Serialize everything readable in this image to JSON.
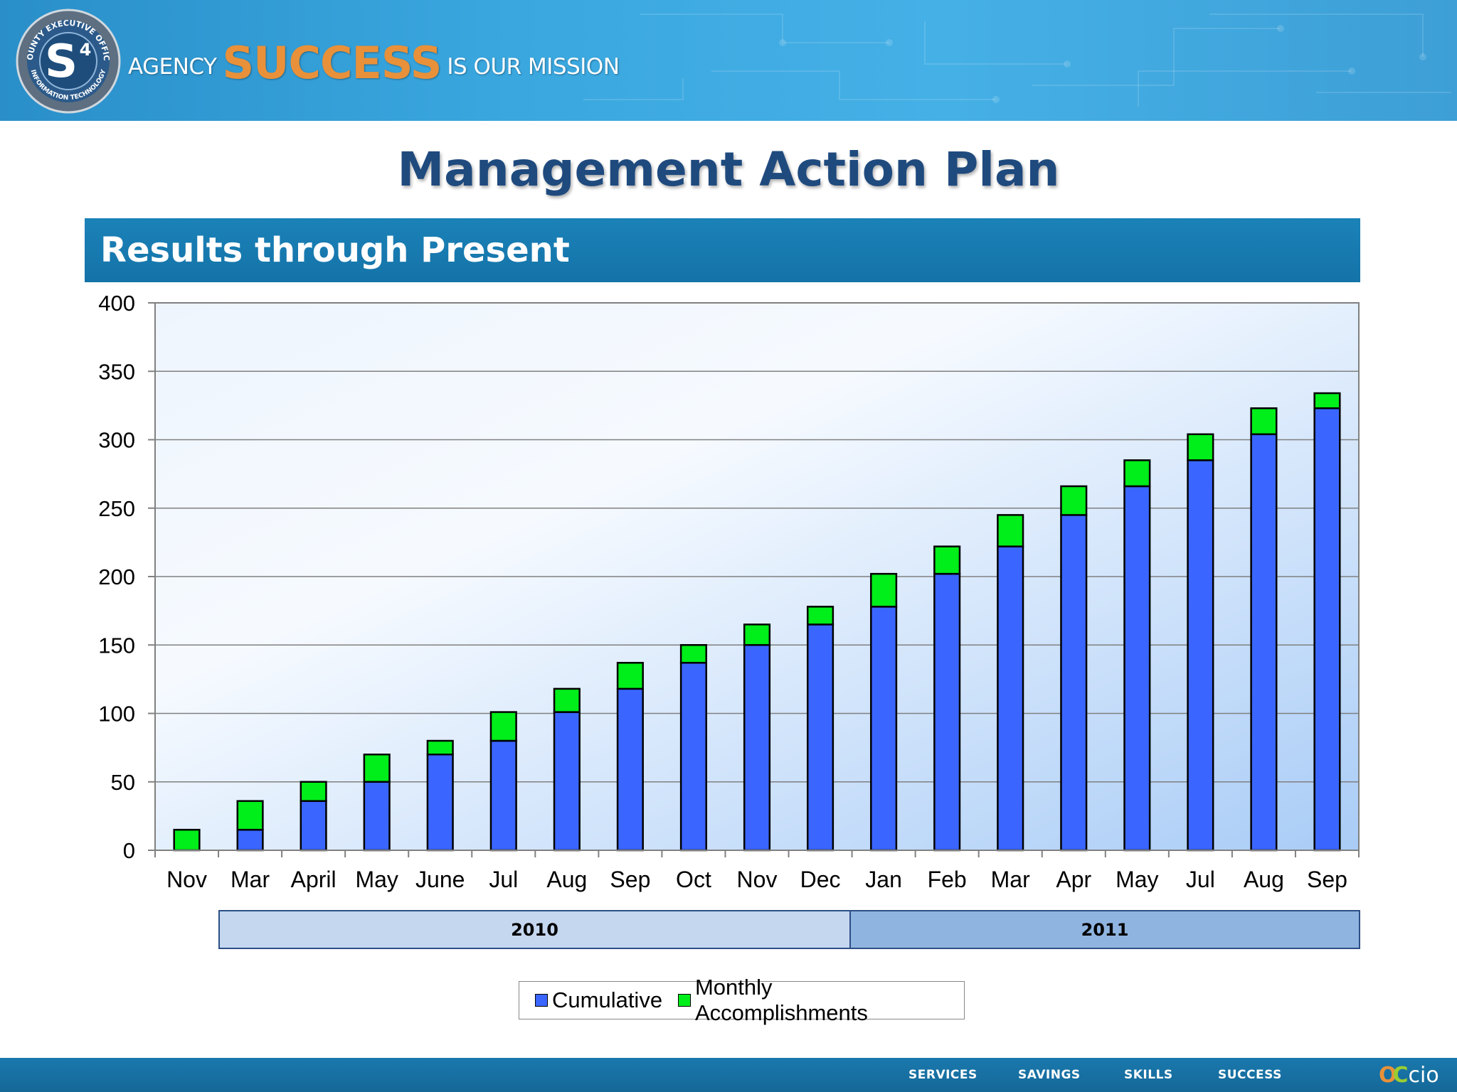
{
  "header": {
    "logo_text_top": "COUNTY EXECUTIVE OFFICE",
    "logo_text_bottom": "INFORMATION TECHNOLOGY",
    "logo_mark": "S",
    "logo_superscript": "4",
    "tagline_prefix": "AGENCY",
    "tagline_emphasis": "SUCCESS",
    "tagline_suffix": "IS OUR MISSION"
  },
  "slide": {
    "title": "Management Action Plan",
    "section_title": "Results through Present"
  },
  "chart_data": {
    "type": "bar",
    "stacked": true,
    "categories": [
      "Nov",
      "Mar",
      "April",
      "May",
      "June",
      "Jul",
      "Aug",
      "Sep",
      "Oct",
      "Nov",
      "Dec",
      "Jan",
      "Feb",
      "Mar",
      "Apr",
      "May",
      "Jul",
      "Aug",
      "Sep"
    ],
    "series": [
      {
        "name": "Cumulative",
        "color": "#3a66ff",
        "values": [
          0,
          15,
          36,
          50,
          70,
          80,
          101,
          118,
          137,
          150,
          165,
          178,
          202,
          222,
          245,
          266,
          285,
          304,
          323
        ]
      },
      {
        "name": "Monthly Accomplishments",
        "color": "#00ee1a",
        "values": [
          15,
          21,
          14,
          20,
          10,
          21,
          17,
          19,
          13,
          15,
          13,
          24,
          20,
          23,
          21,
          19,
          19,
          19,
          11
        ]
      }
    ],
    "ylim": [
      0,
      400
    ],
    "yticks": [
      0,
      50,
      100,
      150,
      200,
      250,
      300,
      350,
      400
    ],
    "grid": true,
    "legend_position": "bottom",
    "year_groups": [
      {
        "label": "2010",
        "from": "Mar",
        "to": "Dec"
      },
      {
        "label": "2011",
        "from": "Jan",
        "to": "Sep"
      }
    ]
  },
  "footer": {
    "nav": [
      "SERVICES",
      "SAVINGS",
      "SKILLS",
      "SUCCESS"
    ],
    "brand_o": "O",
    "brand_c": "C",
    "brand_rest": "cio"
  }
}
